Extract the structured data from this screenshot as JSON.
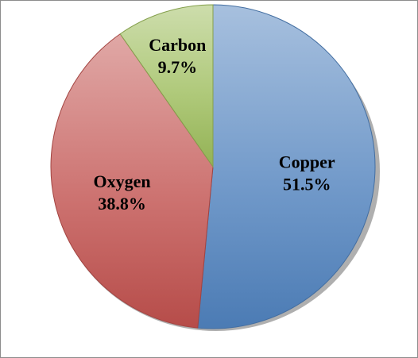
{
  "chart_data": {
    "type": "pie",
    "title": "",
    "slices": [
      {
        "label": "Copper",
        "value": 51.5,
        "value_label": "51.5%",
        "color": "#4f81bd"
      },
      {
        "label": "Oxygen",
        "value": 38.8,
        "value_label": "38.8%",
        "color": "#c0504d"
      },
      {
        "label": "Carbon",
        "value": 9.7,
        "value_label": "9.7%",
        "color": "#9bbb59"
      }
    ],
    "start": "12 o'clock",
    "direction": "clockwise",
    "legend": "none",
    "style": "3D with bevel and shadow"
  }
}
